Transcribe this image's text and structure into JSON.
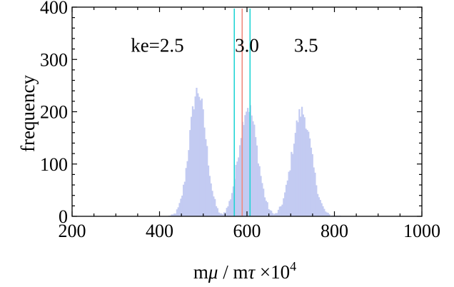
{
  "chart_data": {
    "type": "histogram",
    "xlabel": "mμ / mτ ×10⁴",
    "xlabel_parts": {
      "pre": "m",
      "mu": "μ",
      "mid": " / m",
      "tau": "τ",
      "post": " ×10",
      "sup": "4"
    },
    "ylabel": "frequency",
    "xlim": [
      200,
      1000
    ],
    "ylim": [
      0,
      400
    ],
    "xticks": [
      200,
      400,
      600,
      800,
      1000
    ],
    "yticks": [
      0,
      100,
      200,
      300,
      400
    ],
    "bin_width": 3,
    "bar_color": "#c3cbf2",
    "series": [
      {
        "label": "ke=2.5",
        "center": 487,
        "sigma": 19,
        "peak": 240,
        "x_range": [
          420,
          555
        ]
      },
      {
        "label": "3.0",
        "center": 602,
        "sigma": 21,
        "peak": 210,
        "x_range": [
          540,
          665
        ]
      },
      {
        "label": "3.5",
        "center": 725,
        "sigma": 22,
        "peak": 200,
        "x_range": [
          655,
          812
        ]
      }
    ],
    "annotations": [
      {
        "text": "ke=2.5",
        "x": 395,
        "y": 315
      },
      {
        "text": "3.0",
        "x": 600,
        "y": 315
      },
      {
        "text": "3.5",
        "x": 735,
        "y": 315
      }
    ],
    "vertical_lines": [
      {
        "x": 571,
        "color": "#22d4d4"
      },
      {
        "x": 589,
        "color": "#f08a80"
      },
      {
        "x": 607,
        "color": "#22d4d4"
      }
    ]
  }
}
